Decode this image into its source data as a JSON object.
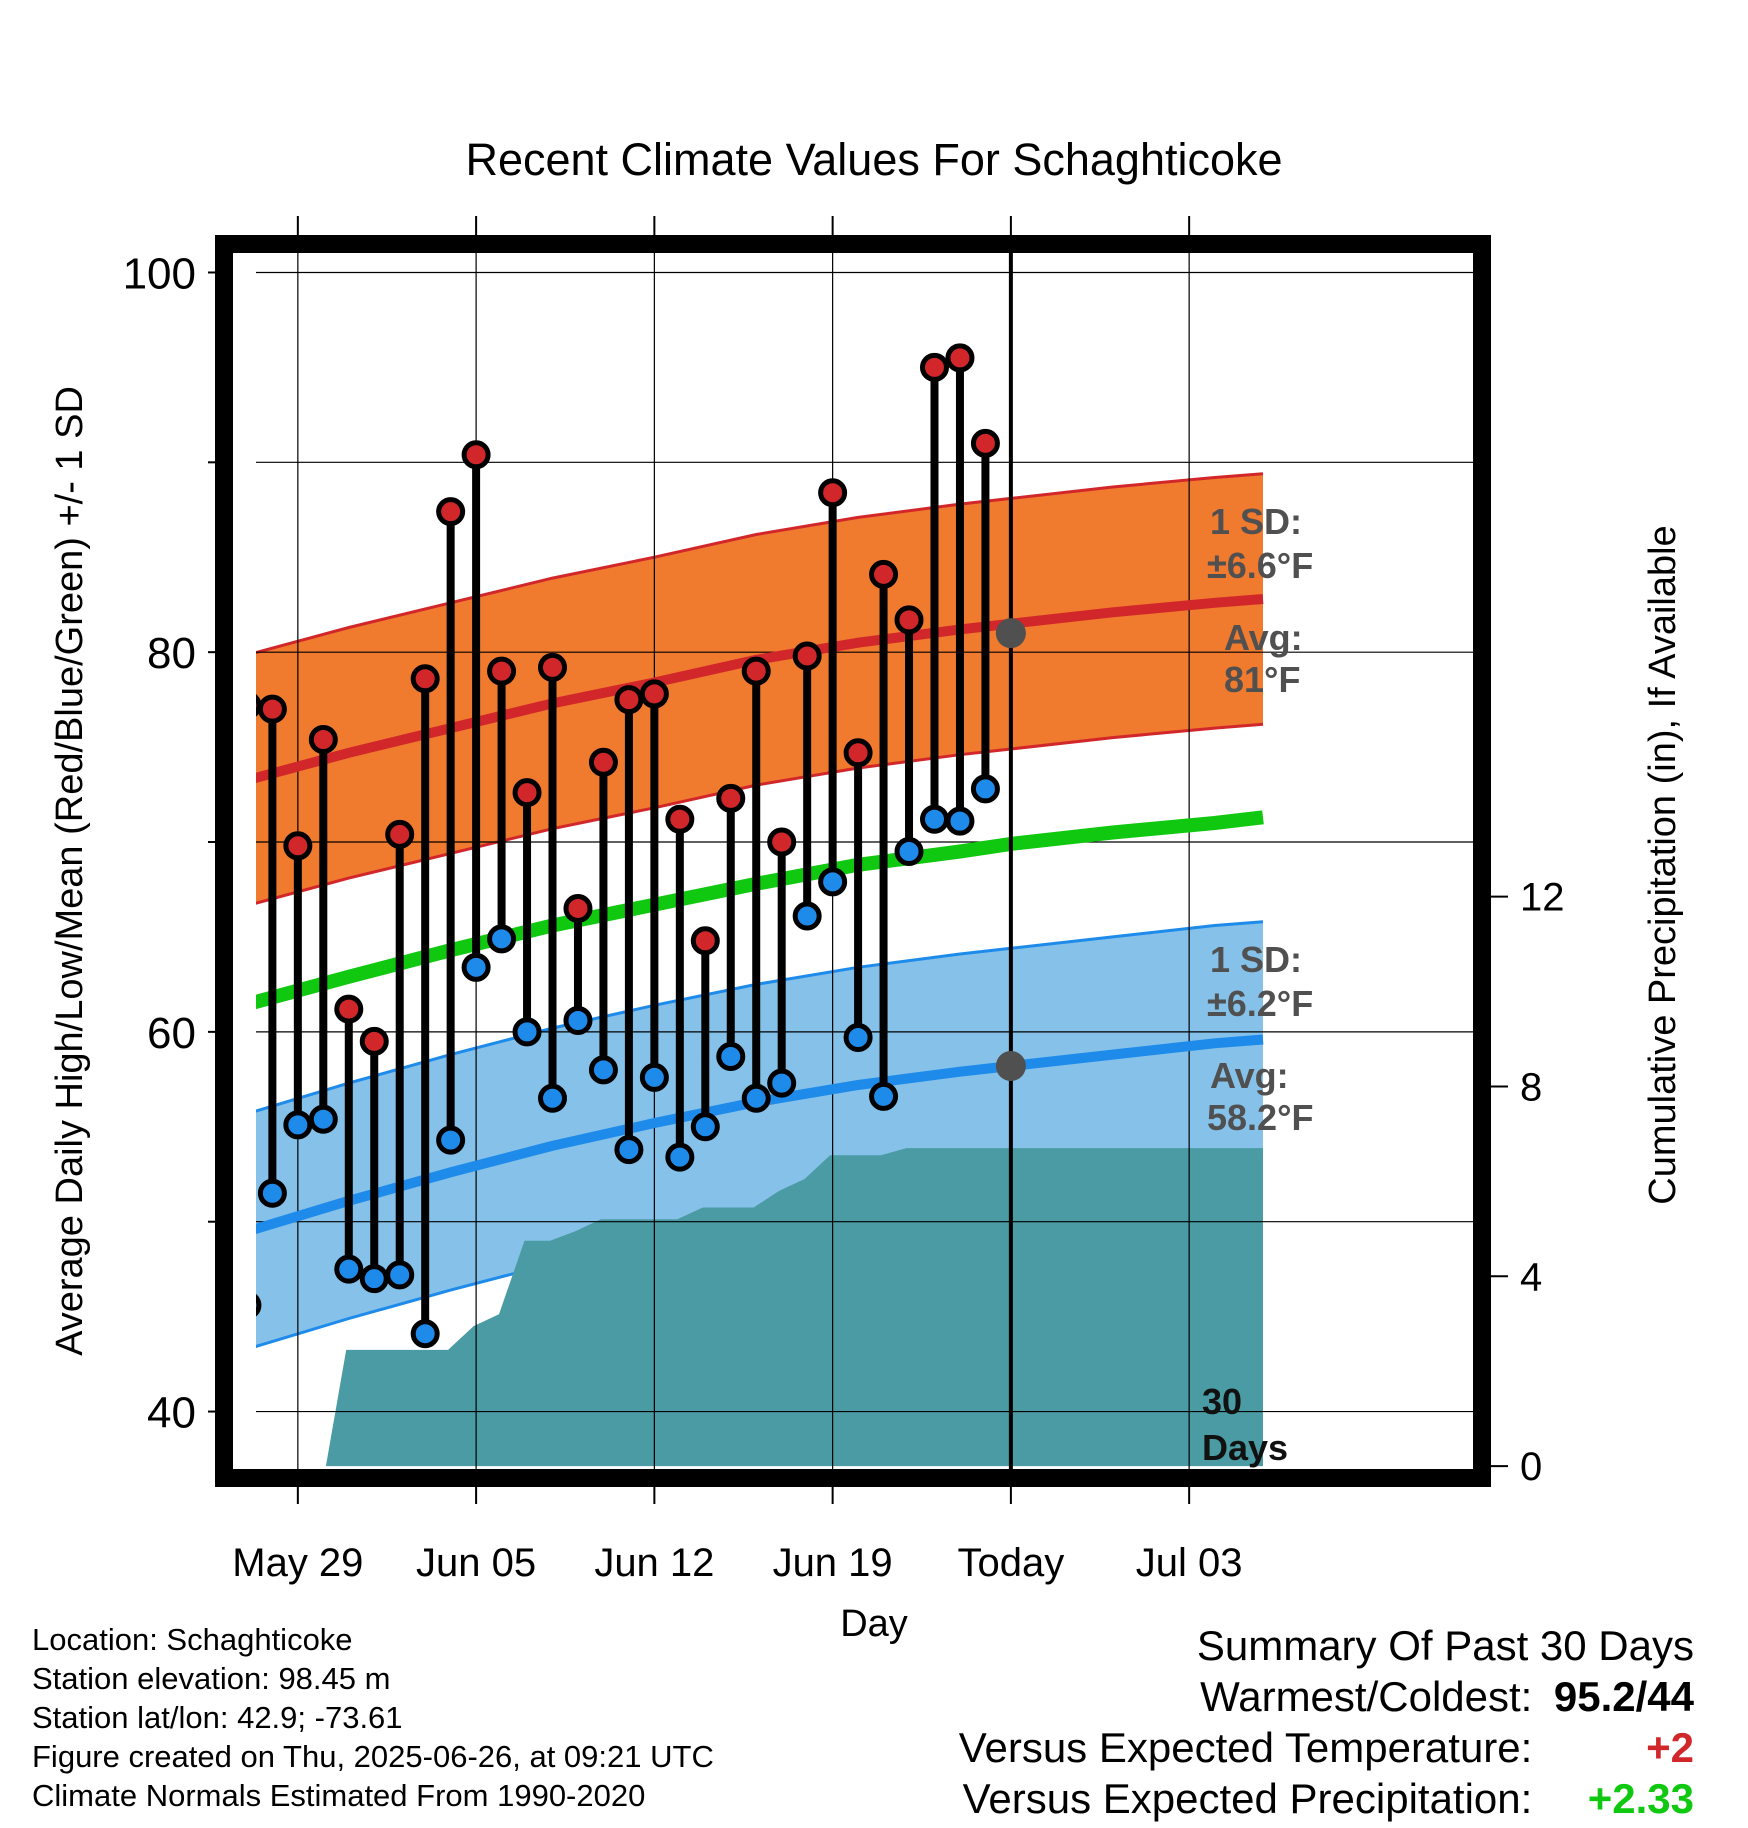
{
  "title": "Recent Climate Values For Schaghticoke",
  "chart_data": {
    "type": "line",
    "title": "Recent Climate Values For Schaghticoke",
    "xlabel": "Day",
    "ylabel": "Average Daily High/Low/Mean (Red/Blue/Green) +/- 1 SD",
    "y2label": "Cumulative Precipitation (in), If Available",
    "ylim": [
      36.5,
      101.5
    ],
    "y2lim": [
      -0.25,
      25.75
    ],
    "xlim": [
      -2.9,
      46.5
    ],
    "yticks": [
      40,
      50,
      60,
      70,
      80,
      90,
      100
    ],
    "ytick_labels": [
      "40",
      "",
      "60",
      "",
      "80",
      "",
      "100"
    ],
    "y2ticks": [
      0,
      4,
      8,
      12
    ],
    "y2tick_labels": [
      "0",
      "4",
      "8",
      "12"
    ],
    "xticks": [
      0,
      7,
      14,
      21,
      28,
      35
    ],
    "xtick_labels": [
      "May 29",
      "Jun 05",
      "Jun 12",
      "Jun 19",
      "Today",
      "Jul 03"
    ],
    "grid": true,
    "daily": {
      "x": [
        -2,
        -1,
        0,
        1,
        2,
        3,
        4,
        5,
        6,
        7,
        8,
        9,
        10,
        11,
        12,
        13,
        14,
        15,
        16,
        17,
        18,
        19,
        20,
        21,
        22,
        23,
        24,
        25,
        26,
        27
      ],
      "high": [
        77.2,
        77.0,
        69.8,
        75.4,
        61.2,
        59.5,
        70.4,
        78.6,
        87.4,
        90.4,
        79.0,
        72.6,
        79.2,
        66.5,
        74.2,
        77.5,
        77.8,
        71.2,
        64.8,
        72.3,
        79.0,
        70.0,
        79.8,
        88.4,
        74.7,
        84.1,
        81.7,
        95.0,
        95.5,
        91.0
      ],
      "low": [
        45.6,
        51.5,
        55.1,
        55.4,
        47.5,
        47.0,
        47.2,
        44.1,
        54.3,
        63.4,
        64.9,
        60.0,
        56.5,
        60.6,
        58.0,
        53.8,
        57.6,
        53.4,
        55.0,
        58.7,
        56.5,
        57.3,
        66.1,
        67.9,
        59.7,
        56.6,
        69.5,
        71.2,
        71.1,
        72.8
      ]
    },
    "normal_high": {
      "x": [
        -2.7,
        2,
        6,
        10,
        14,
        18,
        22,
        26,
        28,
        32,
        36,
        37.9
      ],
      "avg": [
        73.0,
        74.7,
        76.0,
        77.3,
        78.4,
        79.6,
        80.5,
        81.2,
        81.5,
        82.1,
        82.6,
        82.8
      ],
      "sd": 6.6
    },
    "normal_low": {
      "x": [
        -2.7,
        2,
        6,
        10,
        14,
        18,
        22,
        26,
        28,
        32,
        36,
        37.9
      ],
      "avg": [
        49.2,
        51.1,
        52.6,
        54.0,
        55.2,
        56.3,
        57.2,
        57.9,
        58.2,
        58.8,
        59.4,
        59.6
      ],
      "sd": 6.2
    },
    "normal_mean": {
      "x": [
        -2.7,
        2,
        6,
        10,
        14,
        18,
        22,
        26,
        28,
        32,
        36,
        37.9
      ],
      "y": [
        61.2,
        62.9,
        64.3,
        65.6,
        66.7,
        67.8,
        68.8,
        69.5,
        69.9,
        70.5,
        71.0,
        71.3
      ]
    },
    "precip": {
      "x": [
        -2.7,
        1.1,
        1.9,
        3.5,
        5.9,
        6.9,
        7.9,
        8.9,
        9.9,
        10.9,
        11.9,
        12.9,
        13.9,
        14.9,
        15.9,
        16.9,
        17.9,
        18.9,
        19.9,
        20.9,
        21.9,
        22.9,
        23.9,
        24.9,
        25.9,
        26.9,
        28,
        37.9
      ],
      "y": [
        0,
        0,
        2.45,
        2.45,
        2.45,
        2.95,
        3.2,
        4.75,
        4.75,
        4.95,
        5.2,
        5.2,
        5.2,
        5.2,
        5.45,
        5.45,
        5.45,
        5.8,
        6.05,
        6.55,
        6.55,
        6.55,
        6.7,
        6.7,
        6.7,
        6.7,
        6.7,
        6.7
      ]
    },
    "annotations": {
      "high_sd_label": "1 SD:",
      "high_sd_value": "±6.6°F",
      "high_avg_label": "Avg:",
      "high_avg_value": "81°F",
      "low_sd_label": "1 SD:",
      "low_sd_value": "±6.2°F",
      "low_avg_label": "Avg:",
      "low_avg_value": "58.2°F",
      "days_line1": "30",
      "days_line2": "Days",
      "today_x": 28,
      "today_high_avg": 81,
      "today_low_avg": 58.2
    }
  },
  "info": {
    "location": "Location: Schaghticoke",
    "elevation": "Station elevation: 98.45 m",
    "latlon": "Station lat/lon: 42.9; -73.61",
    "created": "Figure created on Thu, 2025-06-26, at 09:21 UTC",
    "normals": "Climate Normals Estimated From 1990-2020"
  },
  "summary": {
    "heading": "Summary Of Past 30 Days",
    "warmest_coldest_label": "Warmest/Coldest:",
    "warmest_coldest_value": "95.2/44",
    "temp_label": "Versus Expected Temperature:",
    "temp_value": "+2",
    "precip_label": "Versus Expected Precipitation:",
    "precip_value": "+2.33"
  },
  "colors": {
    "high_band": "#F07A2E",
    "high_line": "#D2272A",
    "low_band": "#85C1E8",
    "low_line": "#1E8BEB",
    "mean_line": "#10C810",
    "precip": "#4A9BA3",
    "high_point": "#D2272A",
    "low_point": "#1E8BEB",
    "annotation": "#505050",
    "temp_value": "#D2272A",
    "precip_value": "#10C810"
  }
}
